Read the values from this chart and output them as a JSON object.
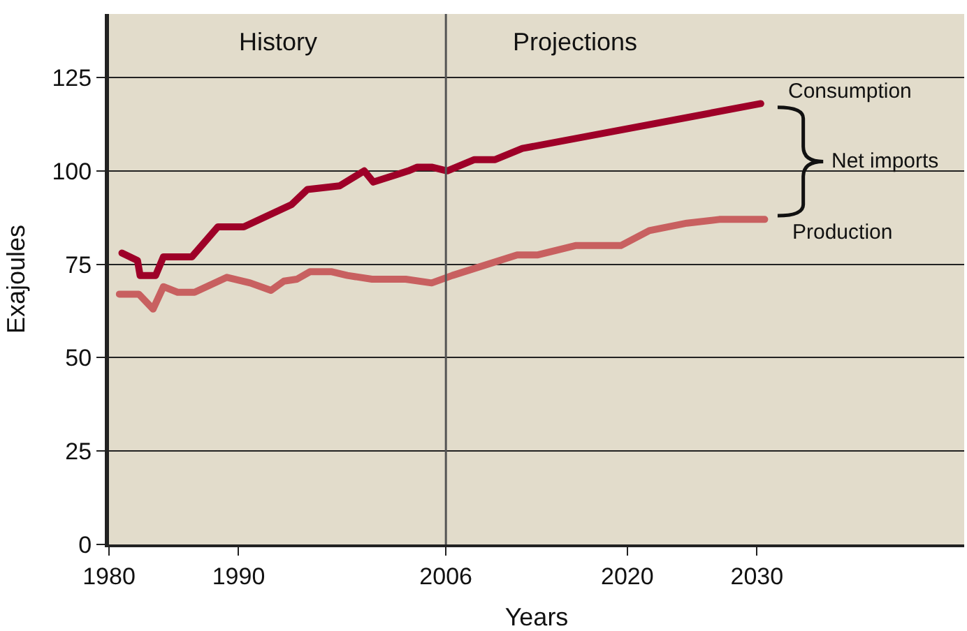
{
  "chart_data": {
    "type": "line",
    "xlabel": "Years",
    "ylabel": "Exajoules",
    "xlim": [
      1980,
      2046
    ],
    "xticks": [
      1980,
      1990,
      2006,
      2020,
      2030
    ],
    "ylim": [
      0,
      142
    ],
    "yticks": [
      0,
      25,
      50,
      75,
      100,
      125
    ],
    "grid": "y",
    "legend": false,
    "marker": "none",
    "line_style": "solid",
    "series": [
      {
        "name": "Consumption",
        "color": "#9e0028",
        "x": [
          1981.0,
          1982.2,
          1982.4,
          1983.6,
          1984.2,
          1986.4,
          1988.4,
          1990.4,
          1994.1,
          1995.3,
          1997.8,
          1999.7,
          2000.4,
          2003.1,
          2003.8,
          2004.9,
          2006.1,
          2008.2,
          2009.8,
          2011.9,
          2030.3
        ],
        "values": [
          78,
          76,
          72,
          72,
          77,
          77,
          85,
          85,
          91,
          95,
          96,
          100,
          97,
          100,
          101,
          101,
          100,
          103,
          103,
          106,
          118
        ]
      },
      {
        "name": "Production",
        "color": "#c86060",
        "x": [
          1980.8,
          1982.3,
          1983.4,
          1984.2,
          1985.3,
          1986.6,
          1989.1,
          1990.9,
          1992.5,
          1993.5,
          1994.5,
          1995.5,
          1997.2,
          1998.4,
          2000.3,
          2002.9,
          2004.9,
          2006.5,
          2011.5,
          2013.1,
          2016.0,
          2019.5,
          2021.7,
          2024.6,
          2027.1,
          2030.6
        ],
        "values": [
          67,
          67,
          63,
          69,
          67.5,
          67.5,
          71.5,
          70,
          68,
          70.5,
          71,
          73,
          73,
          72,
          71,
          71,
          70,
          72,
          77.5,
          77.5,
          80,
          80,
          84,
          86,
          87,
          87
        ]
      }
    ],
    "ref_lines": [
      {
        "axis": "x",
        "value": 2006,
        "color": "#555555"
      }
    ],
    "annotations": [
      "History",
      "Projections",
      "Net imports"
    ]
  }
}
